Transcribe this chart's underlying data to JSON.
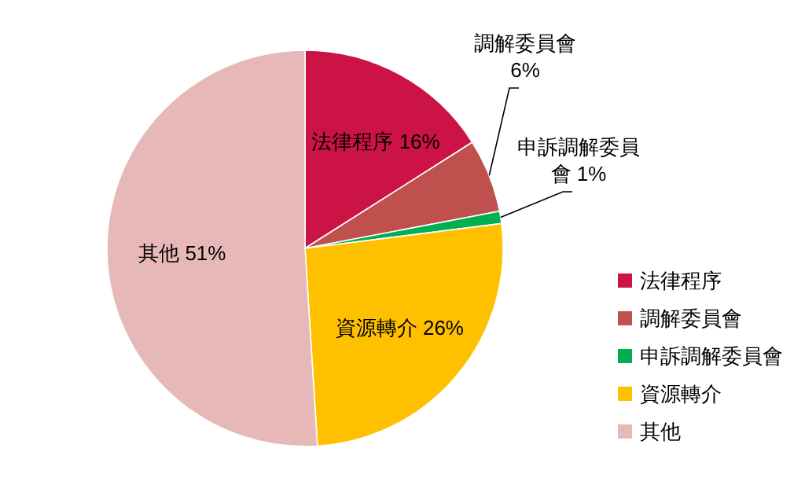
{
  "chart_data": {
    "type": "pie",
    "categories": [
      "法律程序",
      "調解委員會",
      "申訴調解委員會",
      "資源轉介",
      "其他"
    ],
    "values": [
      16,
      6,
      1,
      26,
      51
    ],
    "colors": [
      "#cc1346",
      "#c0504d",
      "#00b050",
      "#ffc000",
      "#e6b9b8"
    ],
    "value_labels": [
      "法律程序 16%",
      "調解委員會 6%",
      "申訴調解委員會 1%",
      "資源轉介 26%",
      "其他 51%"
    ],
    "legend": "right"
  }
}
